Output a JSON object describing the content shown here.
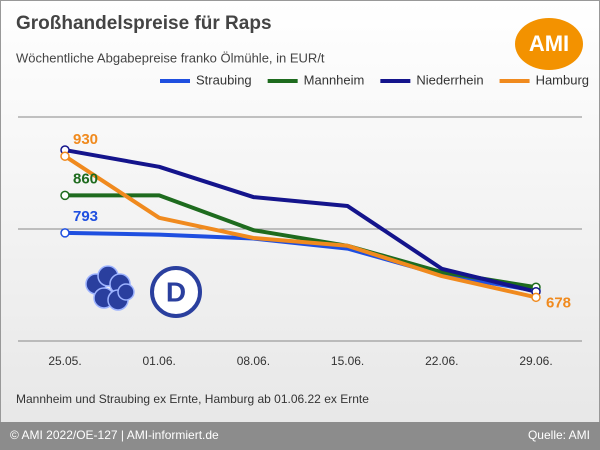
{
  "chart_data": {
    "type": "line",
    "title": "Großhandelspreise für Raps",
    "subtitle": "Wöchentliche Abgabepreise franko Ölmühle, in EUR/t",
    "categories": [
      "25.05.",
      "01.06.",
      "08.06.",
      "15.06.",
      "22.06.",
      "29.06."
    ],
    "series": [
      {
        "name": "Straubing",
        "color": "#1f4fe0",
        "values": [
          793,
          790,
          783,
          765,
          718,
          690
        ]
      },
      {
        "name": "Mannheim",
        "color": "#1e6b1e",
        "values": [
          860,
          860,
          798,
          770,
          723,
          696
        ]
      },
      {
        "name": "Niederrhein",
        "color": "#14148c",
        "values": [
          941,
          911,
          857,
          841,
          729,
          688
        ]
      },
      {
        "name": "Hamburg",
        "color": "#f08a1e",
        "values": [
          930,
          820,
          784,
          770,
          716,
          678
        ]
      }
    ],
    "ylim": [
      600,
      1000
    ],
    "yticks": [
      600,
      800,
      1000
    ],
    "grid": true,
    "note": "Mannheim und Straubing ex Ernte, Hamburg ab 01.06.22 ex Ernte"
  },
  "logo": "AMI",
  "badge": "D",
  "footer": {
    "left": "© AMI 2022/OE-127 | AMI-informiert.de",
    "right": "Quelle: AMI"
  }
}
